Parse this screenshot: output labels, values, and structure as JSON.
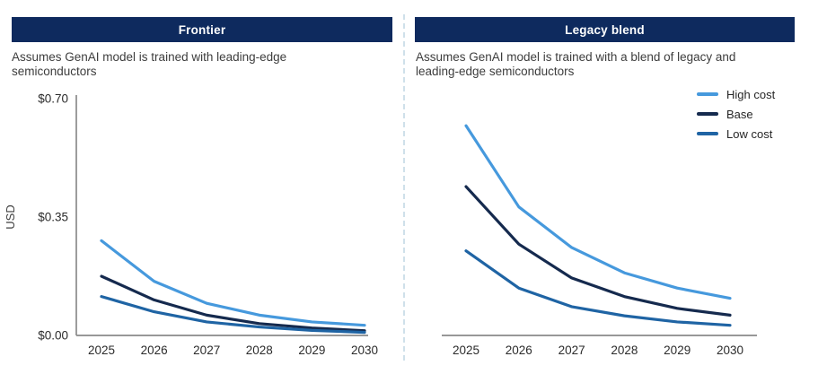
{
  "panels": [
    {
      "header": "Frontier",
      "subtitle": "Assumes GenAI model is trained with leading-edge semiconductors"
    },
    {
      "header": "Legacy blend",
      "subtitle": "Assumes GenAI model is trained with a blend of legacy and leading-edge semiconductors"
    }
  ],
  "legend": [
    {
      "label": "High cost",
      "color": "#4699dd"
    },
    {
      "label": "Base",
      "color": "#152a4e"
    },
    {
      "label": "Low cost",
      "color": "#1f64a4"
    }
  ],
  "colors": {
    "header_bar": "#0e2a5e",
    "header_text": "#ffffff",
    "axis": "#8a8a8a",
    "text": "#2b2b2b",
    "divider": "#cfe0ea",
    "high_cost": "#4699dd",
    "base": "#152a4e",
    "low_cost": "#1f64a4"
  },
  "chart_data": [
    {
      "type": "line",
      "title": "Frontier",
      "x": [
        "2025",
        "2026",
        "2027",
        "2028",
        "2029",
        "2030"
      ],
      "ylabel": "USD",
      "ylim": [
        0,
        0.7
      ],
      "yticks": [
        {
          "value": 0.0,
          "label": "$0.00"
        },
        {
          "value": 0.35,
          "label": "$0.35"
        },
        {
          "value": 0.7,
          "label": "$0.70"
        }
      ],
      "grid": false,
      "legend_position": "none",
      "series": [
        {
          "name": "High cost",
          "color": "#4699dd",
          "values": [
            0.28,
            0.16,
            0.095,
            0.06,
            0.04,
            0.03
          ]
        },
        {
          "name": "Base",
          "color": "#152a4e",
          "values": [
            0.175,
            0.105,
            0.06,
            0.035,
            0.022,
            0.014
          ]
        },
        {
          "name": "Low cost",
          "color": "#1f64a4",
          "values": [
            0.115,
            0.07,
            0.04,
            0.025,
            0.015,
            0.009
          ]
        }
      ]
    },
    {
      "type": "line",
      "title": "Legacy blend",
      "x": [
        "2025",
        "2026",
        "2027",
        "2028",
        "2029",
        "2030"
      ],
      "ylabel": "USD",
      "ylim": [
        0,
        0.7
      ],
      "yticks": [],
      "grid": false,
      "legend_position": "top-right",
      "series": [
        {
          "name": "High cost",
          "color": "#4699dd",
          "values": [
            0.62,
            0.38,
            0.26,
            0.185,
            0.14,
            0.11
          ]
        },
        {
          "name": "Base",
          "color": "#152a4e",
          "values": [
            0.44,
            0.27,
            0.17,
            0.115,
            0.08,
            0.06
          ]
        },
        {
          "name": "Low cost",
          "color": "#1f64a4",
          "values": [
            0.25,
            0.14,
            0.085,
            0.058,
            0.04,
            0.03
          ]
        }
      ]
    }
  ]
}
